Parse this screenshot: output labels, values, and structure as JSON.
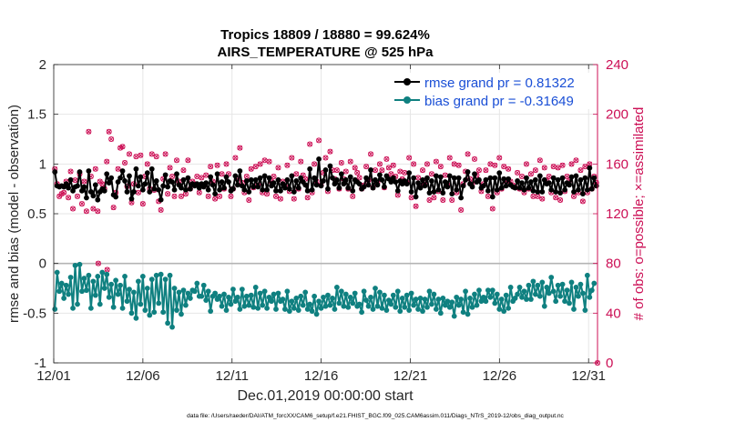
{
  "chart_data": {
    "type": "line",
    "title_line1": "Tropics 18809 / 18880 = 99.624%",
    "title_line2": "AIRS_TEMPERATURE @ 525 hPa",
    "xlabel": "Dec.01,2019 00:00:00 start",
    "ylabel_left": "rmse and bias (model - observation)",
    "ylabel_right": "# of obs: o=possible; ×=assimilated",
    "footer": "data file: /Users/raeder/DAI/ATM_forcXX/CAM6_setup/f.e21.FHIST_BGC.f09_025.CAM6assim.011/Diags_NTrS_2019-12/obs_diag_output.nc",
    "xticks": [
      "12/01",
      "12/06",
      "12/11",
      "12/16",
      "12/21",
      "12/26",
      "12/31"
    ],
    "yticks_left": [
      "-1",
      "-0.5",
      "0",
      "0.5",
      "1",
      "1.5",
      "2"
    ],
    "yticks_right": [
      "0",
      "40",
      "80",
      "120",
      "160",
      "200",
      "240"
    ],
    "ylim_left": [
      -1,
      2
    ],
    "ylim_right": [
      0,
      240
    ],
    "xlim_days": [
      0,
      30.5
    ],
    "grid": true,
    "legend": {
      "placement": "top-right",
      "rmse": "rmse grand pr = 0.81322",
      "bias": "bias grand pr = -0.31649"
    },
    "colors": {
      "rmse": "#000000",
      "bias": "#0f8080",
      "obs": "#cc0f55",
      "axis": "#262626",
      "grid": "#e6e6e6",
      "zero_line": "#b4b4b4",
      "legend_text": "#1a4fd6"
    },
    "series": [
      {
        "name": "rmse",
        "values": [
          0.92,
          0.78,
          0.77,
          0.78,
          0.77,
          0.8,
          0.76,
          0.84,
          0.73,
          0.77,
          0.78,
          0.92,
          0.73,
          0.77,
          0.66,
          0.93,
          0.72,
          0.68,
          0.79,
          0.64,
          0.72,
          0.75,
          0.73,
          0.9,
          0.81,
          0.86,
          0.69,
          0.67,
          0.82,
          0.86,
          0.93,
          0.83,
          0.72,
          0.88,
          0.65,
          0.72,
          0.95,
          0.78,
          0.87,
          0.74,
          0.8,
          0.91,
          0.72,
          0.95,
          0.75,
          0.83,
          0.74,
          0.64,
          0.78,
          0.89,
          0.77,
          0.83,
          0.82,
          0.74,
          0.9,
          0.79,
          0.76,
          0.84,
          0.74,
          0.86,
          0.75,
          0.8,
          0.78,
          0.8,
          0.76,
          0.8,
          0.77,
          0.81,
          0.74,
          0.87,
          0.79,
          0.7,
          0.9,
          0.74,
          0.82,
          0.76,
          0.87,
          0.82,
          0.73,
          0.75,
          0.88,
          0.79,
          0.93,
          0.78,
          0.74,
          0.83,
          0.72,
          0.84,
          0.77,
          0.84,
          0.77,
          0.86,
          0.74,
          0.88,
          0.74,
          0.86,
          0.78,
          0.81,
          0.73,
          0.84,
          0.73,
          0.8,
          0.76,
          0.84,
          0.75,
          0.88,
          0.72,
          0.83,
          0.76,
          0.86,
          0.82,
          0.79,
          0.73,
          0.95,
          0.74,
          0.86,
          0.79,
          1.05,
          0.78,
          0.83,
          0.94,
          0.75,
          0.98,
          0.86,
          0.8,
          0.84,
          0.76,
          0.9,
          0.8,
          0.84,
          0.76,
          0.87,
          0.73,
          0.84,
          0.82,
          0.8,
          0.75,
          0.77,
          0.86,
          0.79,
          0.94,
          0.76,
          0.84,
          0.79,
          0.89,
          0.84,
          0.77,
          0.88,
          0.85,
          0.82,
          0.86,
          0.82,
          0.73,
          0.83,
          0.8,
          0.83,
          0.8,
          0.91,
          0.72,
          0.86,
          0.67,
          0.81,
          0.76,
          0.84,
          0.78,
          0.86,
          0.71,
          0.83,
          0.72,
          0.88,
          0.74,
          0.87,
          0.71,
          0.82,
          0.77,
          0.88,
          0.7,
          0.86,
          0.74,
          0.86,
          0.66,
          0.78,
          0.84,
          0.92,
          0.8,
          0.77,
          0.9,
          0.82,
          0.84,
          0.76,
          0.78,
          0.84,
          0.73,
          0.86,
          0.67,
          0.86,
          0.74,
          0.91,
          0.76,
          0.85,
          0.78,
          0.85,
          0.79,
          0.77,
          0.76,
          0.83,
          0.76,
          0.81,
          0.74,
          0.86,
          0.76,
          0.82,
          0.73,
          0.84,
          0.72,
          0.88,
          0.72,
          0.84,
          0.8,
          0.81,
          0.74,
          0.86,
          0.72,
          0.84,
          0.71,
          0.86,
          0.74,
          0.81,
          0.79,
          0.87,
          0.72,
          0.88,
          0.74,
          0.84,
          0.7,
          0.86,
          0.74,
          0.96,
          0.75,
          0.86,
          0.78
        ]
      },
      {
        "name": "bias",
        "values": [
          -0.46,
          -0.09,
          -0.28,
          -0.2,
          -0.35,
          -0.22,
          -0.31,
          -0.14,
          -0.45,
          -0.02,
          -0.41,
          -0.01,
          -0.28,
          -0.15,
          -0.27,
          -0.12,
          -0.45,
          -0.18,
          -0.32,
          -0.13,
          -0.41,
          -0.09,
          -0.25,
          -0.11,
          -0.34,
          -0.21,
          -0.44,
          -0.17,
          -0.31,
          -0.22,
          -0.45,
          -0.13,
          -0.38,
          -0.26,
          -0.5,
          -0.29,
          -0.55,
          -0.18,
          -0.41,
          -0.13,
          -0.47,
          -0.25,
          -0.52,
          -0.16,
          -0.49,
          -0.12,
          -0.4,
          -0.11,
          -0.49,
          -0.16,
          -0.6,
          -0.12,
          -0.64,
          -0.25,
          -0.47,
          -0.29,
          -0.51,
          -0.27,
          -0.42,
          -0.3,
          -0.35,
          -0.27,
          -0.28,
          -0.2,
          -0.33,
          -0.33,
          -0.22,
          -0.37,
          -0.28,
          -0.48,
          -0.33,
          -0.3,
          -0.36,
          -0.33,
          -0.43,
          -0.31,
          -0.47,
          -0.34,
          -0.41,
          -0.26,
          -0.38,
          -0.34,
          -0.46,
          -0.26,
          -0.43,
          -0.33,
          -0.42,
          -0.32,
          -0.44,
          -0.24,
          -0.45,
          -0.3,
          -0.42,
          -0.28,
          -0.45,
          -0.34,
          -0.38,
          -0.31,
          -0.46,
          -0.3,
          -0.38,
          -0.36,
          -0.46,
          -0.28,
          -0.48,
          -0.38,
          -0.45,
          -0.35,
          -0.47,
          -0.33,
          -0.42,
          -0.29,
          -0.46,
          -0.41,
          -0.48,
          -0.33,
          -0.51,
          -0.38,
          -0.45,
          -0.34,
          -0.43,
          -0.32,
          -0.42,
          -0.35,
          -0.46,
          -0.24,
          -0.4,
          -0.28,
          -0.43,
          -0.31,
          -0.44,
          -0.34,
          -0.4,
          -0.3,
          -0.43,
          -0.41,
          -0.49,
          -0.28,
          -0.37,
          -0.43,
          -0.34,
          -0.46,
          -0.25,
          -0.43,
          -0.29,
          -0.45,
          -0.32,
          -0.47,
          -0.37,
          -0.41,
          -0.32,
          -0.44,
          -0.28,
          -0.48,
          -0.35,
          -0.44,
          -0.32,
          -0.47,
          -0.3,
          -0.42,
          -0.36,
          -0.46,
          -0.35,
          -0.48,
          -0.36,
          -0.44,
          -0.28,
          -0.41,
          -0.31,
          -0.46,
          -0.36,
          -0.5,
          -0.35,
          -0.42,
          -0.38,
          -0.44,
          -0.39,
          -0.53,
          -0.34,
          -0.42,
          -0.36,
          -0.49,
          -0.28,
          -0.51,
          -0.35,
          -0.44,
          -0.31,
          -0.42,
          -0.27,
          -0.38,
          -0.34,
          -0.38,
          -0.27,
          -0.34,
          -0.27,
          -0.4,
          -0.31,
          -0.46,
          -0.36,
          -0.48,
          -0.32,
          -0.45,
          -0.24,
          -0.38,
          -0.35,
          -0.31,
          -0.24,
          -0.34,
          -0.28,
          -0.36,
          -0.22,
          -0.36,
          -0.18,
          -0.31,
          -0.22,
          -0.33,
          -0.19,
          -0.43,
          -0.24,
          -0.3,
          -0.14,
          -0.28,
          -0.38,
          -0.22,
          -0.33,
          -0.21,
          -0.38,
          -0.27,
          -0.4,
          -0.19,
          -0.46,
          -0.24,
          -0.33,
          -0.21,
          -0.3,
          -0.47,
          -0.12,
          -0.34,
          -0.27,
          -0.2
        ]
      }
    ],
    "obs_possible": [
      156,
      144,
      134,
      136,
      137,
      146,
      133,
      154,
      124,
      147,
      134,
      152,
      128,
      146,
      122,
      186,
      150,
      124,
      156,
      122,
      146,
      144,
      140,
      162,
      186,
      180,
      125,
      137,
      156,
      173,
      174,
      161,
      142,
      168,
      129,
      144,
      166,
      137,
      167,
      128,
      150,
      160,
      140,
      168,
      139,
      166,
      130,
      123,
      148,
      168,
      136,
      157,
      150,
      134,
      163,
      146,
      134,
      155,
      136,
      163,
      140,
      146,
      144,
      150,
      137,
      149,
      142,
      151,
      134,
      158,
      146,
      132,
      159,
      134,
      152,
      140,
      160,
      152,
      134,
      140,
      165,
      148,
      173,
      145,
      137,
      150,
      131,
      156,
      141,
      158,
      143,
      160,
      137,
      163,
      136,
      162,
      146,
      150,
      134,
      157,
      132,
      146,
      142,
      159,
      138,
      165,
      132,
      152,
      140,
      162,
      151,
      148,
      133,
      176,
      137,
      160,
      146,
      179,
      143,
      153,
      165,
      138,
      170,
      155,
      148,
      155,
      140,
      161,
      148,
      154,
      140,
      162,
      134,
      157,
      153,
      149,
      140,
      143,
      158,
      147,
      168,
      141,
      155,
      145,
      160,
      155,
      141,
      164,
      157,
      152,
      159,
      150,
      135,
      154,
      148,
      153,
      145,
      165,
      133,
      160,
      126,
      149,
      142,
      155,
      145,
      160,
      131,
      152,
      133,
      162,
      138,
      158,
      131,
      151,
      143,
      165,
      131,
      160,
      137,
      159,
      123,
      144,
      154,
      168,
      148,
      144,
      164,
      151,
      155,
      138,
      144,
      155,
      134,
      160,
      124,
      159,
      137,
      165,
      140,
      158,
      146,
      156,
      146,
      143,
      141,
      153,
      140,
      150,
      137,
      160,
      140,
      152,
      134,
      155,
      134,
      163,
      132,
      157,
      147,
      150,
      137,
      158,
      133,
      157,
      131,
      159,
      138,
      150,
      147,
      160,
      134,
      163,
      137,
      155,
      130,
      158,
      137,
      160,
      140,
      150,
      145
    ],
    "obs_assimilated": [
      156,
      144,
      134,
      136,
      137,
      146,
      133,
      154,
      124,
      147,
      134,
      152,
      128,
      146,
      122,
      186,
      150,
      124,
      156,
      122,
      146,
      144,
      140,
      162,
      186,
      180,
      125,
      137,
      156,
      173,
      174,
      161,
      142,
      168,
      129,
      144,
      166,
      137,
      167,
      128,
      150,
      160,
      140,
      168,
      139,
      166,
      130,
      123,
      148,
      168,
      136,
      157,
      150,
      134,
      163,
      146,
      134,
      155,
      136,
      163,
      140,
      146,
      144,
      150,
      137,
      149,
      142,
      151,
      134,
      158,
      146,
      132,
      159,
      134,
      152,
      140,
      160,
      152,
      134,
      140,
      165,
      148,
      173,
      145,
      137,
      150,
      131,
      156,
      141,
      158,
      143,
      160,
      137,
      163,
      136,
      162,
      146,
      150,
      134,
      157,
      132,
      146,
      142,
      159,
      138,
      165,
      132,
      152,
      140,
      162,
      151,
      148,
      133,
      176,
      137,
      160,
      146,
      179,
      143,
      153,
      165,
      138,
      170,
      155,
      148,
      155,
      140,
      161,
      148,
      154,
      140,
      162,
      134,
      157,
      153,
      149,
      140,
      143,
      158,
      147,
      168,
      141,
      155,
      145,
      160,
      155,
      141,
      164,
      157,
      152,
      159,
      150,
      135,
      154,
      148,
      153,
      145,
      165,
      133,
      160,
      126,
      149,
      142,
      155,
      145,
      160,
      131,
      152,
      133,
      162,
      138,
      158,
      131,
      151,
      143,
      165,
      131,
      160,
      137,
      159,
      123,
      144,
      154,
      168,
      148,
      144,
      164,
      151,
      155,
      138,
      144,
      155,
      134,
      160,
      124,
      159,
      137,
      165,
      140,
      158,
      146,
      156,
      146,
      143,
      141,
      153,
      140,
      150,
      137,
      160,
      140,
      152,
      134,
      155,
      134,
      163,
      132,
      157,
      147,
      150,
      137,
      158,
      133,
      157,
      131,
      159,
      138,
      150,
      147,
      160,
      134,
      163,
      137,
      155,
      130,
      158,
      137,
      160,
      140,
      150,
      145
    ],
    "obs_extra_markers": [
      {
        "x": 2.5,
        "y": 80
      },
      {
        "x": 3.0,
        "y": 75
      },
      {
        "x": 30.5,
        "y": 0
      }
    ]
  }
}
